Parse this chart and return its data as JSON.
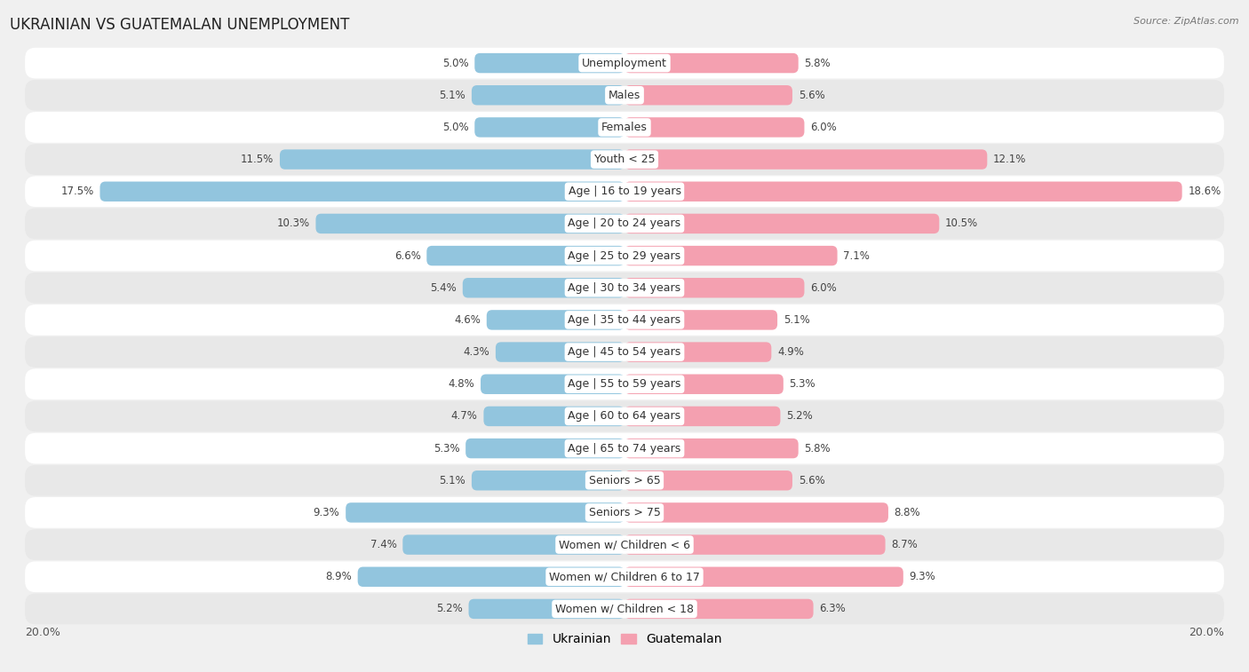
{
  "title": "UKRAINIAN VS GUATEMALAN UNEMPLOYMENT",
  "source": "Source: ZipAtlas.com",
  "categories": [
    "Unemployment",
    "Males",
    "Females",
    "Youth < 25",
    "Age | 16 to 19 years",
    "Age | 20 to 24 years",
    "Age | 25 to 29 years",
    "Age | 30 to 34 years",
    "Age | 35 to 44 years",
    "Age | 45 to 54 years",
    "Age | 55 to 59 years",
    "Age | 60 to 64 years",
    "Age | 65 to 74 years",
    "Seniors > 65",
    "Seniors > 75",
    "Women w/ Children < 6",
    "Women w/ Children 6 to 17",
    "Women w/ Children < 18"
  ],
  "ukrainian": [
    5.0,
    5.1,
    5.0,
    11.5,
    17.5,
    10.3,
    6.6,
    5.4,
    4.6,
    4.3,
    4.8,
    4.7,
    5.3,
    5.1,
    9.3,
    7.4,
    8.9,
    5.2
  ],
  "guatemalan": [
    5.8,
    5.6,
    6.0,
    12.1,
    18.6,
    10.5,
    7.1,
    6.0,
    5.1,
    4.9,
    5.3,
    5.2,
    5.8,
    5.6,
    8.8,
    8.7,
    9.3,
    6.3
  ],
  "ukrainian_color": "#92c5de",
  "guatemalan_color": "#f4a0b0",
  "max_val": 20.0,
  "background_color": "#f0f0f0",
  "row_bg_light": "#ffffff",
  "row_bg_dark": "#e8e8e8",
  "bar_height": 0.62,
  "label_fontsize": 9.0,
  "value_fontsize": 8.5,
  "title_fontsize": 12,
  "source_fontsize": 8.0
}
